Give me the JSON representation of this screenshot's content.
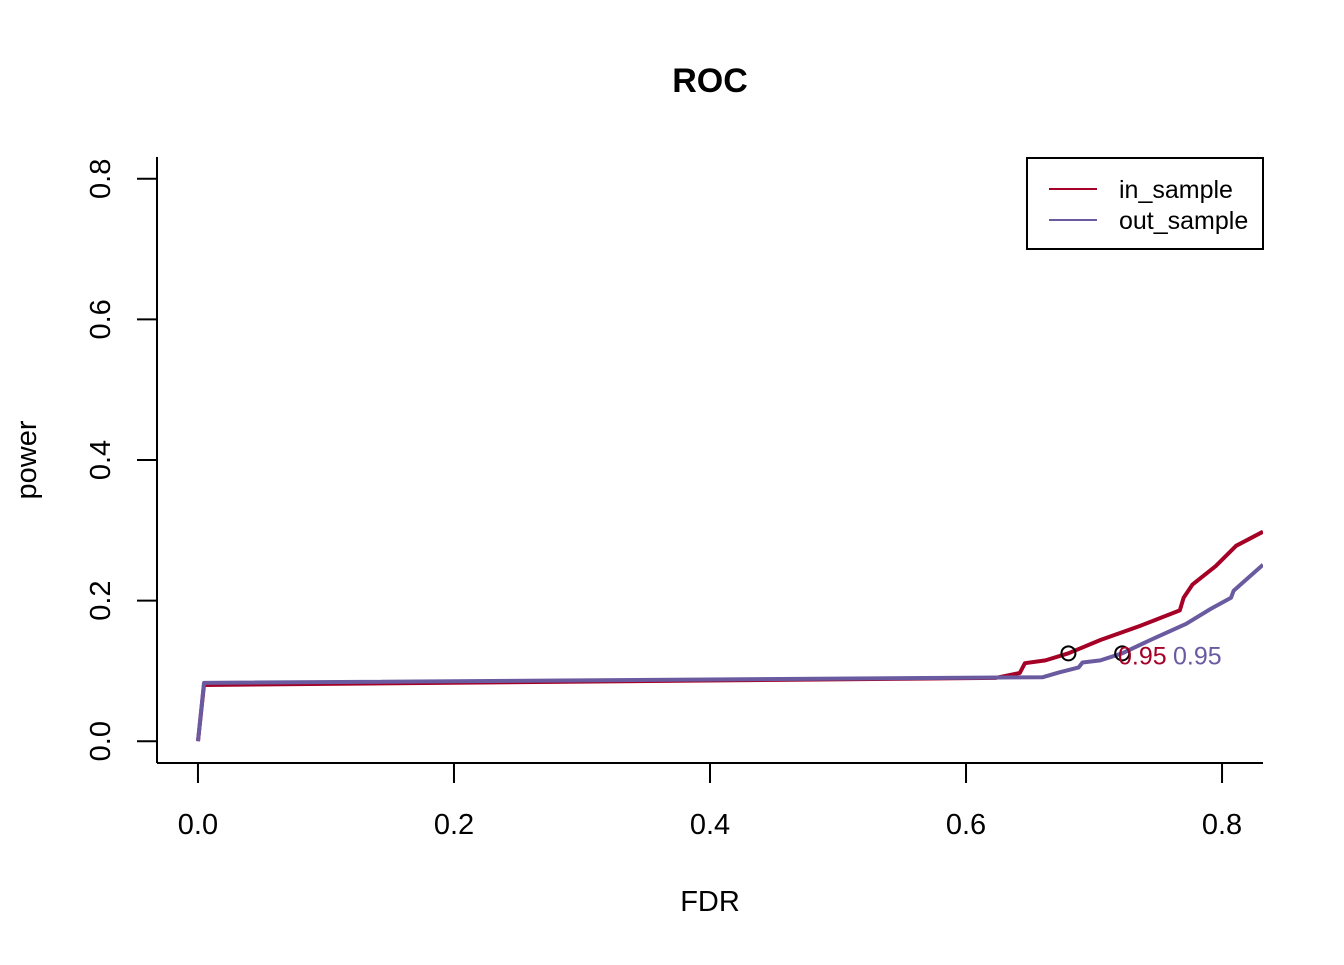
{
  "chart_data": {
    "type": "line",
    "title": "ROC",
    "xlabel": "FDR",
    "ylabel": "power",
    "xlim": [
      -0.032,
      0.832
    ],
    "ylim": [
      -0.031,
      0.831
    ],
    "xticks": [
      0.0,
      0.2,
      0.4,
      0.6,
      0.8
    ],
    "xtick_labels": [
      "0.0",
      "0.2",
      "0.4",
      "0.6",
      "0.8"
    ],
    "yticks": [
      0.0,
      0.2,
      0.4,
      0.6,
      0.8
    ],
    "ytick_labels": [
      "0.0",
      "0.2",
      "0.4",
      "0.6",
      "0.8"
    ],
    "grid": false,
    "legend_placement": "top-right",
    "series": [
      {
        "name": "in_sample",
        "color": "#a50026",
        "x": [
          0,
          0.0047,
          0.623,
          0.642,
          0.646,
          0.662,
          0.68,
          0.705,
          0.736,
          0.767,
          0.77,
          0.777,
          0.795,
          0.811,
          0.832
        ],
        "y": [
          0,
          0.08,
          0.09,
          0.097,
          0.111,
          0.115,
          0.125,
          0.144,
          0.164,
          0.186,
          0.204,
          0.223,
          0.249,
          0.278,
          0.298
        ],
        "marker": {
          "x": 0.68,
          "y": 0.125,
          "label": "0.95"
        }
      },
      {
        "name": "out_sample",
        "color": "#6a5aa0",
        "x": [
          0,
          0.0047,
          0.66,
          0.673,
          0.688,
          0.691,
          0.705,
          0.722,
          0.744,
          0.772,
          0.791,
          0.807,
          0.809,
          0.832
        ],
        "y": [
          0,
          0.083,
          0.091,
          0.098,
          0.105,
          0.112,
          0.115,
          0.125,
          0.144,
          0.167,
          0.188,
          0.204,
          0.214,
          0.251
        ],
        "marker": {
          "x": 0.722,
          "y": 0.125,
          "label": "0.95"
        }
      }
    ]
  }
}
